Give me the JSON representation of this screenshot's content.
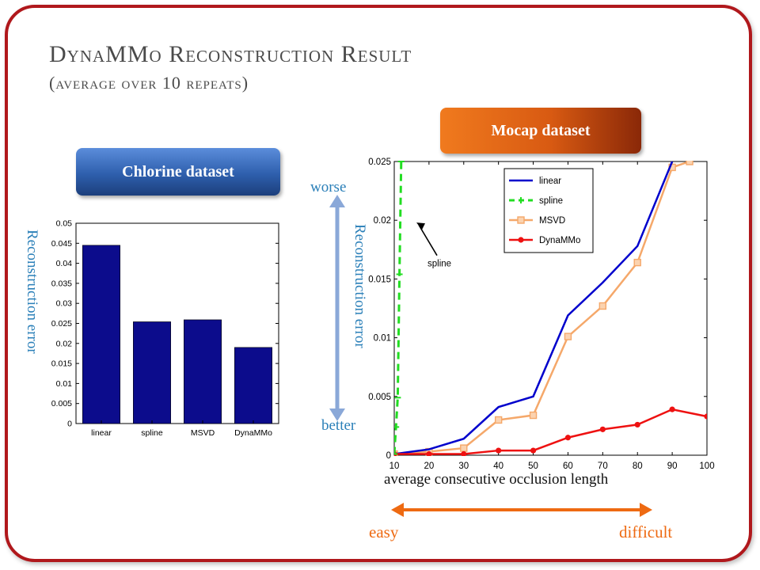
{
  "title": {
    "line1_big_D": "D",
    "line1_small_yna": "YNA",
    "line1_big_MM": "MM",
    "line1_small_o": "O",
    "line1_big_R": " R",
    "line1_small_econstruction": "ECONSTRUCTION",
    "line1_big_R2": " R",
    "line1_small_esult": "ESULT",
    "line2": "(average over 10 repeats)"
  },
  "chlorine": {
    "badge": "Chlorine dataset",
    "ylabel": "Reconstruction error"
  },
  "mocap": {
    "badge": "Mocap dataset",
    "ylabel": "Reconstruction error",
    "xlabel": "average consecutive occlusion length",
    "spline_annotation": "spline"
  },
  "annotations": {
    "worse": "worse",
    "better": "better",
    "easy": "easy",
    "difficult": "difficult"
  },
  "colors": {
    "frame": "#b0181c",
    "bar": "#0c0c8c",
    "linear": "#0000cc",
    "spline": "#22dd22",
    "msvd": "#f5a86a",
    "dynammo": "#ee1111",
    "blue_arrow": "#8aa8d8",
    "orange_arrow": "#ee6a12",
    "label_blue": "#2a7fb8",
    "label_orange": "#ee6a12"
  },
  "chart_data": [
    {
      "type": "bar",
      "categories": [
        "linear",
        "spline",
        "MSVD",
        "DynaMMo"
      ],
      "values": [
        0.0445,
        0.0254,
        0.0259,
        0.019
      ],
      "title": "",
      "xlabel": "",
      "ylabel": "Reconstruction error",
      "ylim": [
        0,
        0.05
      ],
      "yticks": [
        0,
        0.005,
        0.01,
        0.015,
        0.02,
        0.025,
        0.03,
        0.035,
        0.04,
        0.045,
        0.05
      ],
      "ytick_labels": [
        "0",
        "0.005",
        "0.01",
        "0.015",
        "0.02",
        "0.025",
        "0.03",
        "0.035",
        "0.04",
        "0.045",
        "0.05"
      ]
    },
    {
      "type": "line",
      "title": "",
      "xlabel": "average consecutive occlusion length",
      "ylabel": "Reconstruction error",
      "xlim": [
        10,
        100
      ],
      "ylim": [
        0,
        0.025
      ],
      "xticks": [
        10,
        20,
        30,
        40,
        50,
        60,
        70,
        80,
        90,
        100
      ],
      "xtick_labels": [
        "10",
        "20",
        "30",
        "40",
        "50",
        "60",
        "70",
        "80",
        "90",
        "100"
      ],
      "yticks": [
        0,
        0.005,
        0.01,
        0.015,
        0.02,
        0.025
      ],
      "ytick_labels": [
        "0",
        "0.005",
        "0.01",
        "0.015",
        "0.02",
        "0.025"
      ],
      "legend_position": "top-right",
      "series": [
        {
          "name": "linear",
          "x": [
            10,
            20,
            30,
            40,
            50,
            60,
            70,
            80,
            90
          ],
          "y": [
            0.0001,
            0.0005,
            0.0014,
            0.0041,
            0.005,
            0.0119,
            0.0147,
            0.0178,
            0.025
          ],
          "marker": "none",
          "dash": "solid"
        },
        {
          "name": "spline",
          "x": [
            10,
            10.5,
            11,
            11.5,
            12
          ],
          "y": [
            0.0001,
            0.0024,
            0.0049,
            0.0154,
            0.025
          ],
          "marker": "plus",
          "dash": "dashed"
        },
        {
          "name": "MSVD",
          "x": [
            10,
            20,
            30,
            40,
            50,
            60,
            70,
            80,
            90,
            95
          ],
          "y": [
            0.0001,
            0.0003,
            0.0006,
            0.003,
            0.0034,
            0.0101,
            0.0127,
            0.0164,
            0.0245,
            0.025
          ],
          "marker": "square",
          "dash": "solid"
        },
        {
          "name": "DynaMMo",
          "x": [
            10,
            20,
            30,
            40,
            50,
            60,
            70,
            80,
            90,
            100
          ],
          "y": [
            0.0001,
            0.0001,
            0.0001,
            0.0004,
            0.0004,
            0.0015,
            0.0022,
            0.0026,
            0.0039,
            0.0033
          ],
          "marker": "dot",
          "dash": "solid"
        }
      ]
    }
  ]
}
